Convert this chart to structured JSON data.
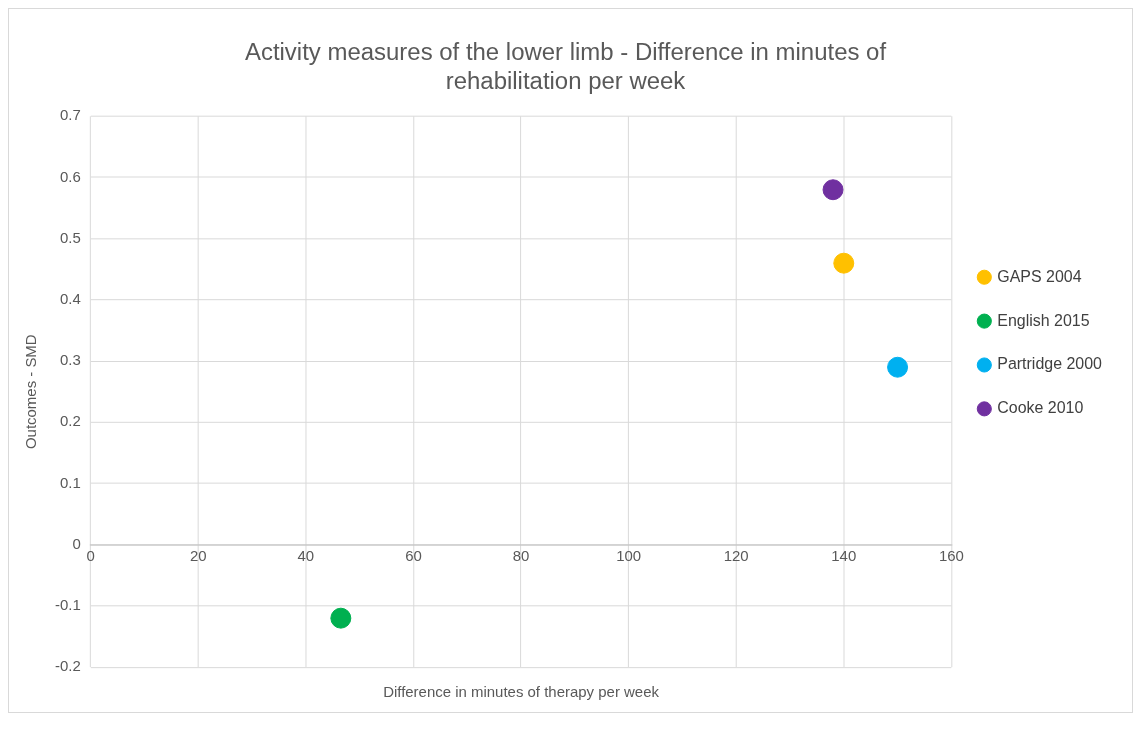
{
  "chart_data": {
    "type": "scatter",
    "title": "Activity measures of the lower limb - Difference in minutes of rehabilitation per week",
    "xlabel": "Difference in minutes of therapy per week",
    "ylabel": "Outcomes - SMD",
    "series": [
      {
        "name": "GAPS 2004",
        "color": "#ffc000",
        "x": [
          140
        ],
        "values": [
          0.46
        ]
      },
      {
        "name": "English 2015",
        "color": "#00b050",
        "x": [
          46.5
        ],
        "values": [
          -0.12
        ]
      },
      {
        "name": "Partridge 2000",
        "color": "#00b0f0",
        "x": [
          150
        ],
        "values": [
          0.29
        ]
      },
      {
        "name": "Cooke 2010",
        "color": "#7030a0",
        "x": [
          138
        ],
        "values": [
          0.58
        ]
      }
    ],
    "xlim": [
      0,
      160
    ],
    "xticks": [
      0,
      20,
      40,
      60,
      80,
      100,
      120,
      140,
      160
    ],
    "ylim": [
      -0.2,
      0.7
    ],
    "yticks": [
      -0.2,
      -0.1,
      0,
      0.1,
      0.2,
      0.3,
      0.4,
      0.5,
      0.6,
      0.7
    ],
    "grid": true,
    "legend": "right",
    "marker": "circle"
  }
}
